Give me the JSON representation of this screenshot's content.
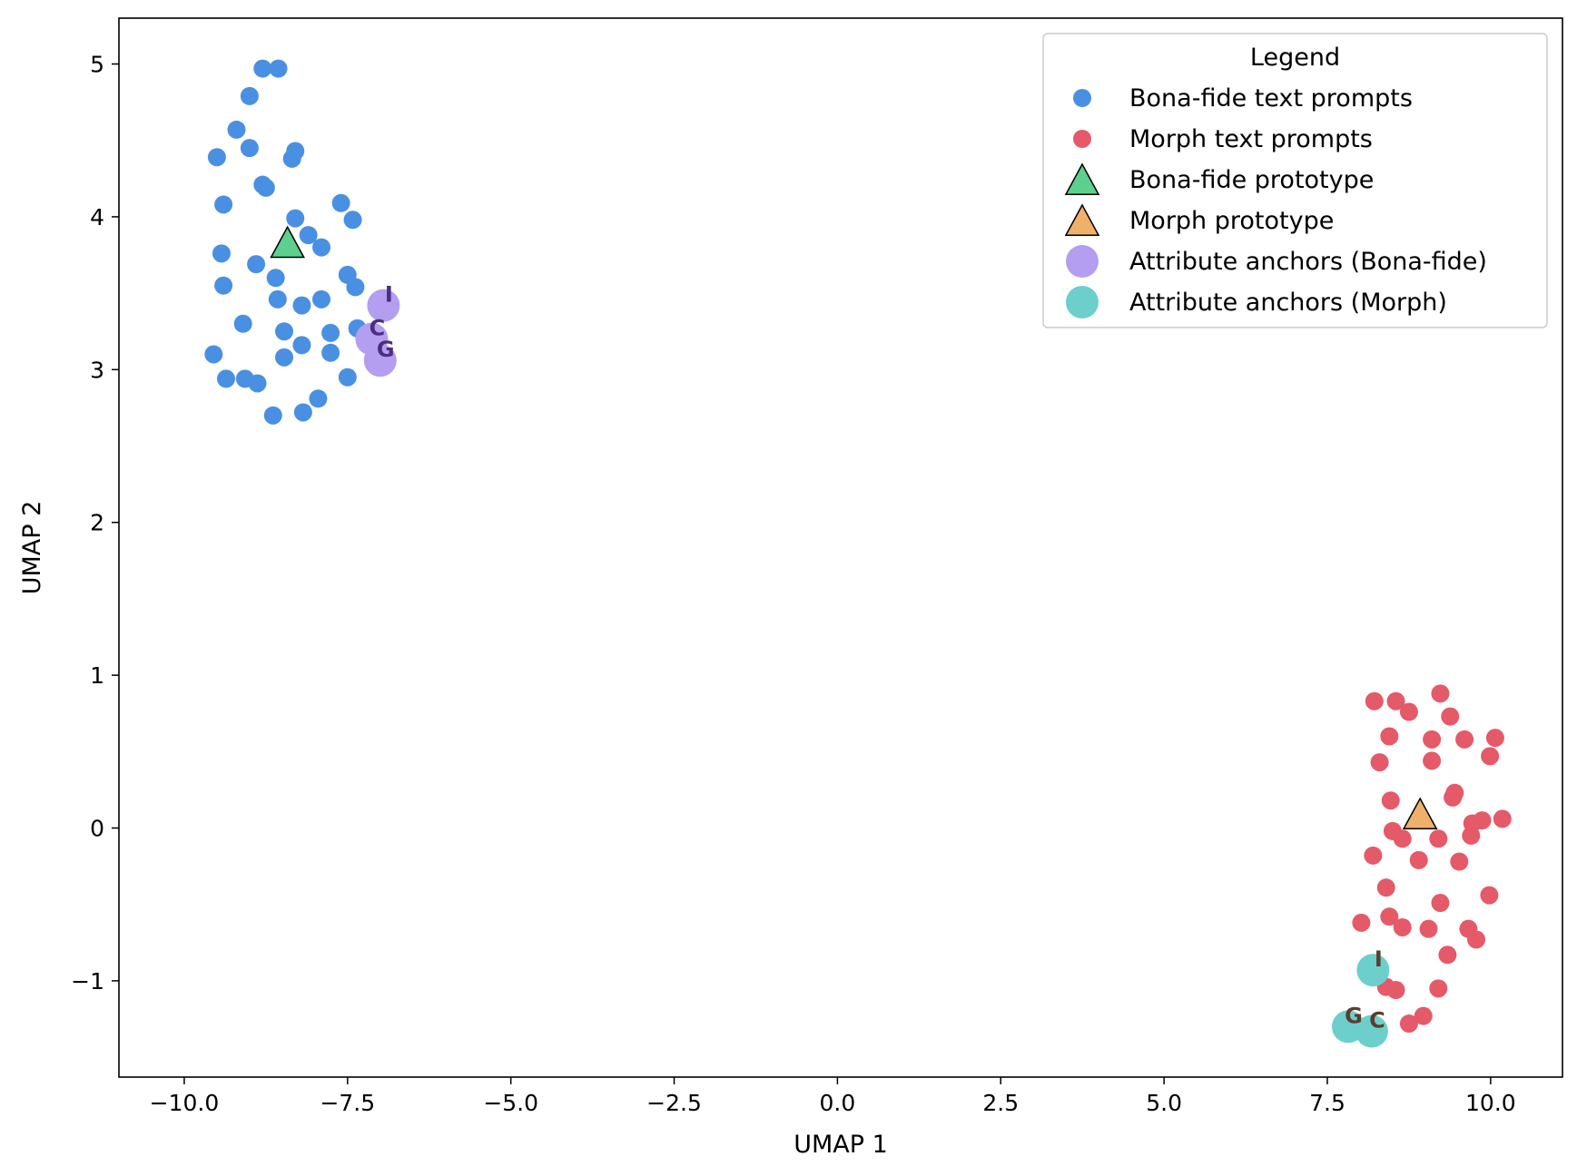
{
  "chart_data": {
    "type": "scatter",
    "xlabel": "UMAP 1",
    "ylabel": "UMAP 2",
    "xlim": [
      -11.0,
      11.1
    ],
    "ylim": [
      -1.63,
      5.3
    ],
    "xticks": [
      -10.0,
      -7.5,
      -5.0,
      -2.5,
      0.0,
      2.5,
      5.0,
      7.5,
      10.0
    ],
    "xtick_labels": [
      "−10.0",
      "−7.5",
      "−5.0",
      "−2.5",
      "0.0",
      "2.5",
      "5.0",
      "7.5",
      "10.0"
    ],
    "yticks": [
      -1,
      0,
      1,
      2,
      3,
      4,
      5
    ],
    "ytick_labels": [
      "−1",
      "0",
      "1",
      "2",
      "3",
      "4",
      "5"
    ],
    "grid": false,
    "legend": {
      "title": "Legend",
      "placement": "top-right",
      "entries": [
        "Bona-fide text prompts",
        "Morph text prompts",
        "Bona-fide prototype",
        "Morph prototype",
        "Attribute anchors (Bona-fide)",
        "Attribute anchors (Morph)"
      ]
    },
    "colors": {
      "bona_fide": "#4a90e2",
      "morph": "#e45a68",
      "bona_fide_prototype": "#5dcf8e",
      "morph_prototype": "#eeb06b",
      "anchor_bona_fide": "#b39ef0",
      "anchor_morph": "#6ccfcb",
      "anchor_label_bona_fide": "#4b2e83",
      "anchor_label_morph": "#5a3e2b"
    },
    "series": [
      {
        "name": "Bona-fide text prompts",
        "marker": "circle",
        "points": [
          [
            -8.8,
            4.97
          ],
          [
            -8.56,
            4.97
          ],
          [
            -9.0,
            4.79
          ],
          [
            -9.2,
            4.57
          ],
          [
            -9.5,
            4.39
          ],
          [
            -9.0,
            4.45
          ],
          [
            -8.3,
            4.43
          ],
          [
            -8.35,
            4.38
          ],
          [
            -8.8,
            4.21
          ],
          [
            -8.75,
            4.19
          ],
          [
            -9.4,
            4.08
          ],
          [
            -7.6,
            4.09
          ],
          [
            -8.3,
            3.99
          ],
          [
            -7.42,
            3.98
          ],
          [
            -8.1,
            3.88
          ],
          [
            -7.9,
            3.8
          ],
          [
            -9.43,
            3.76
          ],
          [
            -8.9,
            3.69
          ],
          [
            -7.5,
            3.62
          ],
          [
            -8.6,
            3.6
          ],
          [
            -9.4,
            3.55
          ],
          [
            -7.38,
            3.54
          ],
          [
            -8.57,
            3.46
          ],
          [
            -7.9,
            3.46
          ],
          [
            -8.2,
            3.42
          ],
          [
            -9.1,
            3.3
          ],
          [
            -7.35,
            3.27
          ],
          [
            -8.47,
            3.25
          ],
          [
            -7.76,
            3.24
          ],
          [
            -8.2,
            3.16
          ],
          [
            -9.55,
            3.1
          ],
          [
            -7.76,
            3.11
          ],
          [
            -8.47,
            3.08
          ],
          [
            -9.36,
            2.94
          ],
          [
            -9.07,
            2.94
          ],
          [
            -7.5,
            2.95
          ],
          [
            -8.88,
            2.91
          ],
          [
            -7.95,
            2.81
          ],
          [
            -8.18,
            2.72
          ],
          [
            -8.64,
            2.7
          ]
        ]
      },
      {
        "name": "Morph text prompts",
        "marker": "circle",
        "points": [
          [
            9.23,
            0.88
          ],
          [
            8.22,
            0.83
          ],
          [
            8.55,
            0.83
          ],
          [
            8.75,
            0.76
          ],
          [
            9.38,
            0.73
          ],
          [
            8.45,
            0.6
          ],
          [
            9.1,
            0.58
          ],
          [
            9.6,
            0.58
          ],
          [
            10.07,
            0.59
          ],
          [
            9.99,
            0.47
          ],
          [
            8.3,
            0.43
          ],
          [
            9.1,
            0.44
          ],
          [
            9.45,
            0.23
          ],
          [
            9.42,
            0.2
          ],
          [
            8.47,
            0.18
          ],
          [
            9.72,
            0.03
          ],
          [
            9.87,
            0.05
          ],
          [
            10.18,
            0.06
          ],
          [
            8.5,
            -0.02
          ],
          [
            8.65,
            -0.07
          ],
          [
            9.2,
            -0.07
          ],
          [
            9.7,
            -0.05
          ],
          [
            8.2,
            -0.18
          ],
          [
            8.9,
            -0.21
          ],
          [
            9.52,
            -0.22
          ],
          [
            8.4,
            -0.39
          ],
          [
            9.98,
            -0.44
          ],
          [
            9.23,
            -0.49
          ],
          [
            8.45,
            -0.58
          ],
          [
            8.02,
            -0.62
          ],
          [
            8.65,
            -0.65
          ],
          [
            9.05,
            -0.66
          ],
          [
            9.66,
            -0.66
          ],
          [
            9.78,
            -0.73
          ],
          [
            9.34,
            -0.83
          ],
          [
            8.4,
            -1.04
          ],
          [
            8.55,
            -1.06
          ],
          [
            9.2,
            -1.05
          ],
          [
            8.97,
            -1.23
          ],
          [
            8.75,
            -1.28
          ]
        ]
      },
      {
        "name": "Bona-fide prototype",
        "marker": "triangle",
        "points": [
          [
            -8.42,
            3.82
          ]
        ]
      },
      {
        "name": "Morph prototype",
        "marker": "triangle",
        "points": [
          [
            8.92,
            0.08
          ]
        ]
      },
      {
        "name": "Attribute anchors (Bona-fide)",
        "marker": "circle-large",
        "points": [
          [
            -6.95,
            3.42
          ],
          [
            -7.13,
            3.2
          ],
          [
            -7.0,
            3.06
          ]
        ],
        "labels": [
          "I",
          "C",
          "G"
        ]
      },
      {
        "name": "Attribute anchors (Morph)",
        "marker": "circle-large",
        "points": [
          [
            8.2,
            -0.93
          ],
          [
            8.18,
            -1.33
          ],
          [
            7.82,
            -1.3
          ]
        ],
        "labels": [
          "I",
          "C",
          "G"
        ]
      }
    ]
  }
}
